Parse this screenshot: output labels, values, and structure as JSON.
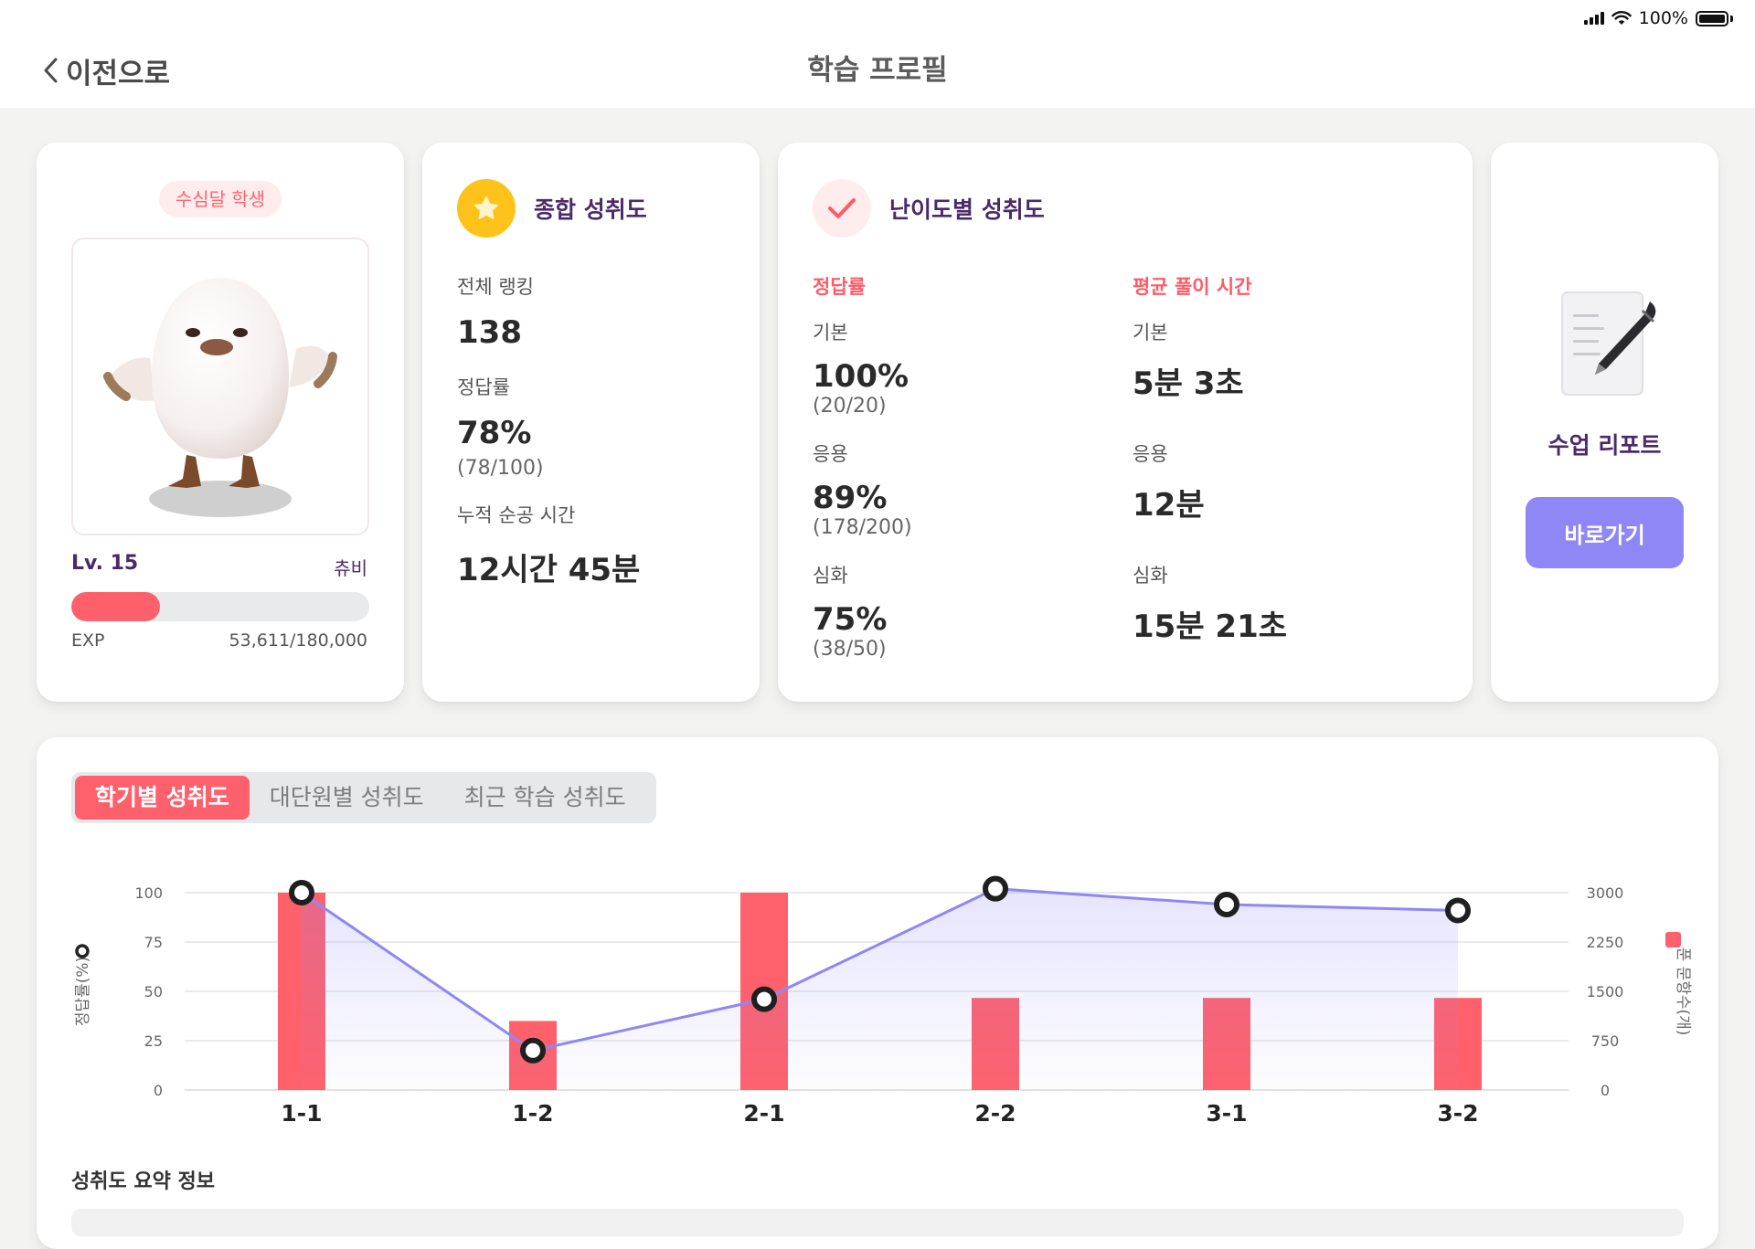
{
  "status_bar": {
    "battery_text": "100%"
  },
  "header": {
    "back_label": "이전으로",
    "title": "학습 프로필"
  },
  "profile": {
    "badge": "수심달 학생",
    "level": "Lv. 15",
    "character_name": "츄비",
    "exp_label": "EXP",
    "exp_value": "53,611/180,000",
    "exp_progress": 0.298
  },
  "overall": {
    "title": "종합 성취도",
    "ranking_label": "전체 랭킹",
    "ranking_value": "138",
    "accuracy_label": "정답률",
    "accuracy_value": "78%",
    "accuracy_sub": "(78/100)",
    "time_label": "누적 순공 시간",
    "time_value": "12시간 45분"
  },
  "difficulty": {
    "title": "난이도별 성취도",
    "accuracy_header": "정답률",
    "time_header": "평균 풀이 시간",
    "levels": [
      {
        "label": "기본",
        "accuracy": "100%",
        "detail": "(20/20)",
        "time": "5분 3초"
      },
      {
        "label": "응용",
        "accuracy": "89%",
        "detail": "(178/200)",
        "time": "12분"
      },
      {
        "label": "심화",
        "accuracy": "75%",
        "detail": "(38/50)",
        "time": "15분 21초"
      }
    ]
  },
  "report": {
    "title": "수업 리포트",
    "button_label": "바로가기"
  },
  "tabs": [
    {
      "label": "학기별 성취도",
      "active": true
    },
    {
      "label": "대단원별 성취도",
      "active": false
    },
    {
      "label": "최근 학습 성취도",
      "active": false
    }
  ],
  "summary_title": "성취도 요약 정보",
  "colors": {
    "accent": "#ff616c",
    "line": "#8f87f6",
    "purple_text": "#4b2a6b",
    "star": "#ffc21a"
  },
  "chart_data": {
    "type": "bar",
    "categories": [
      "1-1",
      "1-2",
      "2-1",
      "2-2",
      "3-1",
      "3-2"
    ],
    "ylabel": "정답률(%)",
    "y2label": "푼 문항수(개)",
    "ylim": [
      0,
      100
    ],
    "y2lim": [
      0,
      3000
    ],
    "yticks": [
      "0",
      "25",
      "50",
      "75",
      "100"
    ],
    "y2ticks": [
      "0",
      "750",
      "1500",
      "2250",
      "3000"
    ],
    "grid": true,
    "series": [
      {
        "type": "bar",
        "axis": "right",
        "values": [
          3000,
          1050,
          3000,
          1400,
          1400,
          1400
        ]
      },
      {
        "type": "line",
        "axis": "left",
        "values": [
          100,
          20,
          46,
          102,
          94,
          91
        ]
      }
    ]
  }
}
